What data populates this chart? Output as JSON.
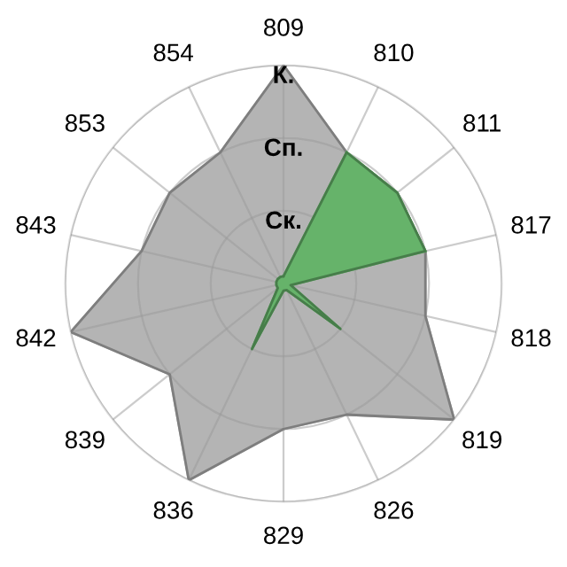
{
  "chart_data": {
    "type": "radar",
    "categories": [
      "809",
      "810",
      "811",
      "817",
      "818",
      "819",
      "826",
      "829",
      "836",
      "839",
      "842",
      "843",
      "853",
      "854"
    ],
    "series": [
      {
        "color": "#b4b4b4",
        "values": [
          3,
          2,
          2,
          2,
          2,
          3,
          2,
          2,
          3,
          2,
          3,
          2,
          2,
          2
        ]
      },
      {
        "color": "#66b36a",
        "values": [
          0.1,
          2,
          2,
          2,
          0.1,
          1,
          0.1,
          0.1,
          1,
          0.1,
          0.1,
          0.1,
          0.1,
          0.1
        ]
      }
    ],
    "ylim": [
      0,
      3
    ],
    "yticks": [
      {
        "value": 1,
        "label": "Ск."
      },
      {
        "value": 2,
        "label": "Сп."
      },
      {
        "value": 3,
        "label": "К."
      }
    ],
    "grid": true,
    "legend": false
  }
}
